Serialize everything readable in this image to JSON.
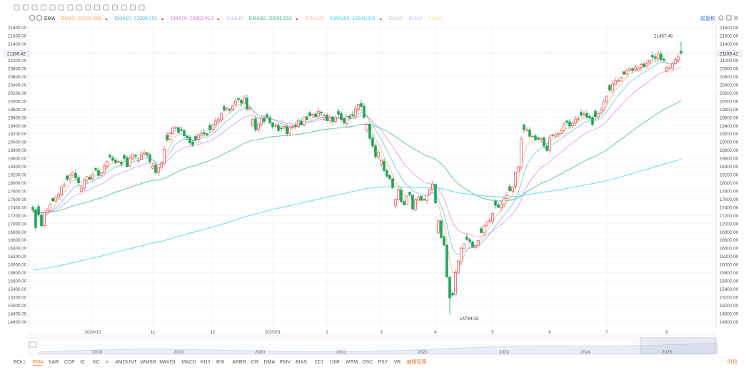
{
  "toolbar": {
    "icons": [
      "cursor-icon",
      "draw-icon",
      "settings-icon",
      "undo-icon",
      "redo-icon",
      "text-icon",
      "ruler-icon",
      "grid-icon",
      "fib-icon",
      "brush-icon",
      "magnet-icon",
      "lock-icon",
      "eye-icon",
      "trash-icon",
      "layers-icon"
    ]
  },
  "legend": {
    "indicator": "EMA",
    "items": [
      {
        "label": "EMA5:",
        "value": "21031.666",
        "color": "#f5a463",
        "arrow": "▲"
      },
      {
        "label": "EMA10:",
        "value": "21000.101",
        "color": "#4cb6e6",
        "arrow": "▲"
      },
      {
        "label": "EMA20:",
        "value": "20853.413",
        "color": "#d97fd9",
        "arrow": "▲"
      },
      {
        "label": "EMA30",
        "value": "",
        "color": "#c9bbf0",
        "arrow": ""
      },
      {
        "label": "EMA60:",
        "value": "20056.653",
        "color": "#46b98a",
        "arrow": "▲"
      },
      {
        "label": "EMA120",
        "value": "",
        "color": "#f7c1c1",
        "arrow": ""
      },
      {
        "label": "EMA250:",
        "value": "18641.501",
        "color": "#3fd6e0",
        "arrow": "▲"
      },
      {
        "label": "EMA5",
        "value": "",
        "color": "#c9c9c9",
        "arrow": ""
      },
      {
        "label": "EMA8",
        "value": "",
        "color": "#d8c3f0",
        "arrow": ""
      },
      {
        "label": "EMA5",
        "value": "",
        "color": "#f3e2a0",
        "arrow": ""
      }
    ],
    "fuquan": "前复权"
  },
  "price": {
    "current": "21169.42",
    "current_value": 21169.42,
    "high_label": "21457.48",
    "high_value": 21457.48,
    "low_label": "14784.03",
    "low_value": 14784.03
  },
  "bottom_tabs": [
    "BOLL",
    "EMA",
    "SAR",
    "CDP",
    "IC",
    "KC",
    ">",
    "AMOUNT",
    "WMSR",
    "MAVOL",
    "MACD",
    "KDJ",
    "RSI",
    "ARBR",
    "CR",
    "DMA",
    "EMV",
    "BIAS",
    "CCI",
    "DMI",
    "MTM",
    "OSC",
    "PSY",
    "VR",
    "编辑管理"
  ],
  "active_tab": "EMA",
  "ending_label": "时段",
  "navigator": {
    "years": [
      "2018",
      "2019",
      "2020",
      "2021",
      "2022",
      "2023",
      "2024",
      "2025"
    ]
  },
  "colors": {
    "up": "#f05a5a",
    "down": "#1fa55a",
    "grid": "#f0f0f0",
    "axis_text": "#555555",
    "current_line": "#f5b9a8"
  },
  "chart_data": {
    "type": "candlestick",
    "title": "",
    "ylim": [
      14400,
      21900
    ],
    "y_ticks": [
      14600,
      14800,
      15000,
      15200,
      15400,
      15600,
      15800,
      16000,
      16200,
      16400,
      16600,
      16800,
      17000,
      17200,
      17400,
      17600,
      17800,
      18000,
      18200,
      18400,
      18600,
      18800,
      19000,
      19200,
      19400,
      19600,
      19800,
      20000,
      20200,
      20400,
      20600,
      20800,
      21000,
      21200,
      21400,
      21600,
      21800
    ],
    "x_ticks": [
      {
        "label": "2024/10",
        "index": 21
      },
      {
        "label": "11",
        "index": 42
      },
      {
        "label": "12",
        "index": 63
      },
      {
        "label": "2025/01",
        "index": 84
      },
      {
        "label": "2",
        "index": 103
      },
      {
        "label": "3",
        "index": 122
      },
      {
        "label": "4",
        "index": 141
      },
      {
        "label": "5",
        "index": 161
      },
      {
        "label": "6",
        "index": 181
      },
      {
        "label": "7",
        "index": 201
      },
      {
        "label": "8",
        "index": 222
      }
    ],
    "closes": [
      17340,
      16900,
      17220,
      16950,
      17280,
      17330,
      17460,
      17560,
      17650,
      17720,
      17900,
      17950,
      18080,
      18180,
      18250,
      18120,
      18000,
      17880,
      18060,
      18150,
      18090,
      18200,
      18310,
      18180,
      18250,
      18410,
      18520,
      18630,
      18550,
      18500,
      18520,
      18460,
      18600,
      18400,
      18600,
      18690,
      18650,
      18560,
      18700,
      18750,
      18690,
      18520,
      18410,
      18250,
      18380,
      18480,
      18820,
      19050,
      19210,
      19340,
      19350,
      19230,
      19280,
      19150,
      19100,
      18980,
      18920,
      19060,
      19180,
      19210,
      19200,
      19170,
      19300,
      19420,
      19510,
      19560,
      19690,
      19780,
      19810,
      19780,
      19890,
      20000,
      20040,
      19950,
      20080,
      19800,
      19850,
      19560,
      19300,
      19440,
      19580,
      19500,
      19610,
      19470,
      19370,
      19400,
      19280,
      19330,
      19380,
      19200,
      19350,
      19370,
      19380,
      19530,
      19430,
      19600,
      19550,
      19640,
      19680,
      19620,
      19750,
      19710,
      19640,
      19520,
      19610,
      19500,
      19600,
      19680,
      19550,
      19470,
      19620,
      19600,
      19640,
      19810,
      19920,
      19870,
      19600,
      19430,
      19090,
      18900,
      18640,
      18750,
      18540,
      18300,
      18160,
      18100,
      17880,
      17600,
      17840,
      17540,
      17460,
      17650,
      17710,
      17360,
      17590,
      17650,
      17570,
      17580,
      17700,
      17840,
      17970,
      17510,
      17070,
      16660,
      16470,
      15700,
      15180,
      15250,
      15800,
      16080,
      16400,
      16500,
      16610,
      16560,
      16430,
      16460,
      16590,
      16780,
      16940,
      17040,
      17080,
      17250,
      17450,
      17400,
      17480,
      17620,
      17690,
      17810,
      17900,
      18250,
      18390,
      19070,
      19300,
      19300,
      19140,
      19140,
      19060,
      19070,
      19090,
      18900,
      18790,
      19120,
      19160,
      19180,
      19200,
      19270,
      19420,
      19480,
      19390,
      19450,
      19560,
      19570,
      19660,
      19700,
      19610,
      19590,
      19430,
      19620,
      19690,
      19780,
      19980,
      20120,
      20270,
      20420,
      20510,
      20500,
      20580,
      20660,
      20760,
      20800,
      20750,
      20840,
      20810,
      20900,
      20850,
      20920,
      21000,
      21080,
      21050,
      21150,
      21020,
      21000,
      20820,
      20810,
      20920,
      21020,
      21080,
      21169.42
    ],
    "series": [
      {
        "name": "EMA5",
        "value": 21031.666
      },
      {
        "name": "EMA10",
        "value": 21000.101
      },
      {
        "name": "EMA20",
        "value": 20853.413
      },
      {
        "name": "EMA60",
        "value": 20056.653
      },
      {
        "name": "EMA250",
        "value": 18641.501
      }
    ]
  }
}
